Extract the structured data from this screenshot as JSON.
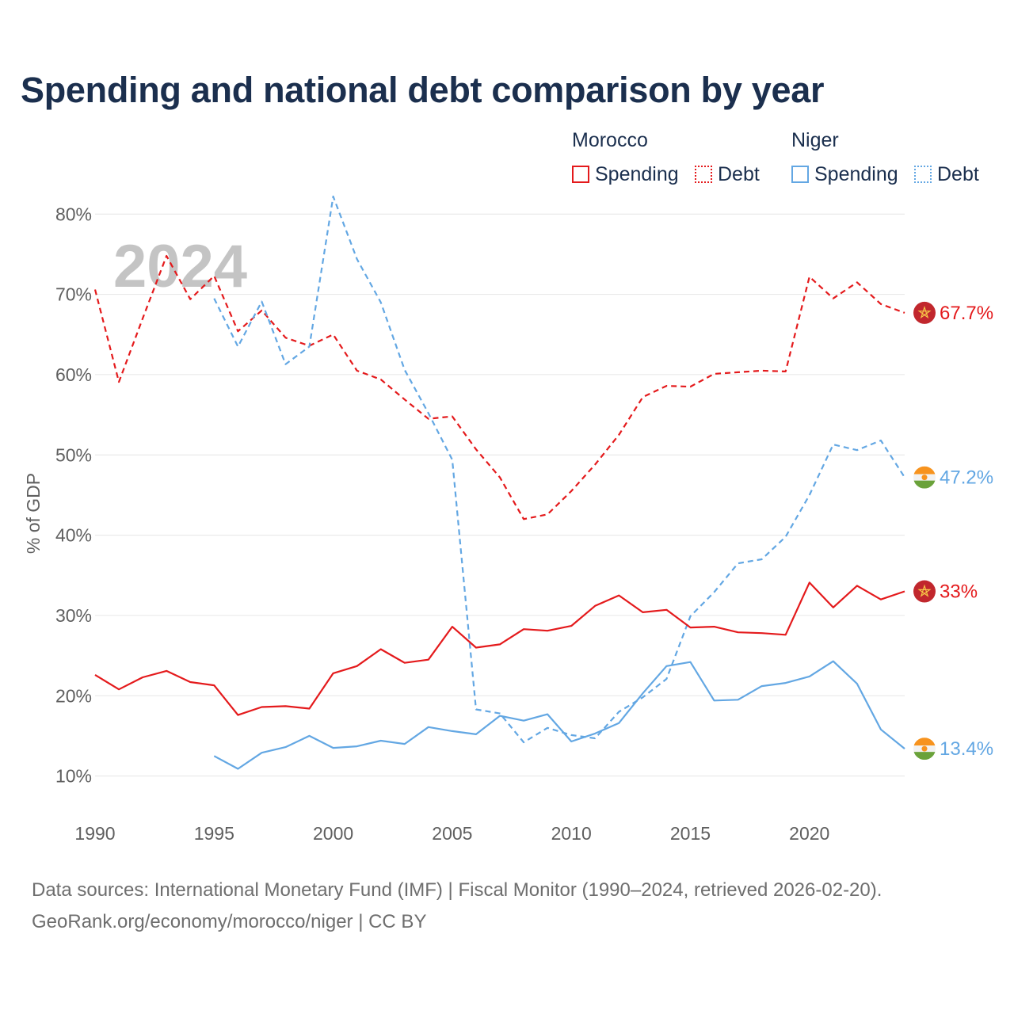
{
  "title": "Spending and national debt comparison by year",
  "legend": {
    "morocco": {
      "name": "Morocco",
      "spending_label": "Spending",
      "debt_label": "Debt"
    },
    "niger": {
      "name": "Niger",
      "spending_label": "Spending",
      "debt_label": "Debt"
    }
  },
  "footer": {
    "line1": "Data sources: International Monetary Fund (IMF) | Fiscal Monitor (1990–2024, retrieved 2026-02-20).",
    "line2": "GeoRank.org/economy/morocco/niger | CC BY"
  },
  "colors": {
    "morocco": "#e41a1c",
    "niger": "#63a7e3",
    "grid": "#e6e6e6"
  },
  "chart_data": {
    "type": "line",
    "title": "Spending and national debt comparison by year",
    "year_label": "2024",
    "ylabel": "% of GDP",
    "xlabel": "",
    "xlim": [
      1990,
      2024
    ],
    "ylim": [
      7,
      82
    ],
    "x_ticks": [
      1990,
      1995,
      2000,
      2005,
      2010,
      2015,
      2020
    ],
    "y_ticks": [
      10,
      20,
      30,
      40,
      50,
      60,
      70,
      80
    ],
    "y_tick_labels": [
      "10%",
      "20%",
      "30%",
      "40%",
      "50%",
      "60%",
      "70%",
      "80%"
    ],
    "grid": true,
    "series": [
      {
        "name": "Morocco Debt",
        "country": "Morocco",
        "kind": "debt",
        "start_year": 1990,
        "values": [
          70.6,
          59.1,
          67.0,
          74.8,
          69.4,
          72.3,
          65.4,
          68.0,
          64.6,
          63.6,
          65.0,
          60.5,
          59.4,
          56.9,
          54.5,
          54.8,
          50.7,
          47.2,
          42.0,
          42.6,
          45.5,
          48.8,
          52.5,
          57.2,
          58.6,
          58.5,
          60.1,
          60.3,
          60.5,
          60.4,
          72.2,
          69.5,
          71.5,
          68.8,
          67.7
        ],
        "end_label": "67.7%"
      },
      {
        "name": "Niger Debt",
        "country": "Niger",
        "kind": "debt",
        "start_year": 1995,
        "values": [
          69.5,
          63.5,
          69.1,
          61.3,
          63.5,
          82.2,
          74.4,
          69.0,
          60.6,
          55.2,
          49.4,
          18.3,
          17.8,
          14.2,
          16.0,
          15.1,
          14.7,
          18.0,
          19.8,
          22.1,
          29.9,
          32.9,
          36.5,
          37.0,
          39.8,
          45.0,
          51.3,
          50.6,
          51.8,
          47.2
        ],
        "end_label": "47.2%"
      },
      {
        "name": "Morocco Spending",
        "country": "Morocco",
        "kind": "spending",
        "start_year": 1990,
        "values": [
          22.6,
          20.8,
          22.3,
          23.1,
          21.7,
          21.3,
          17.6,
          18.6,
          18.7,
          18.4,
          22.8,
          23.7,
          25.8,
          24.1,
          24.5,
          28.6,
          26.0,
          26.4,
          28.3,
          28.1,
          28.7,
          31.2,
          32.5,
          30.4,
          30.7,
          28.5,
          28.6,
          27.9,
          27.8,
          27.6,
          34.1,
          31.0,
          33.7,
          32.0,
          33.0
        ],
        "end_label": "33%"
      },
      {
        "name": "Niger Spending",
        "country": "Niger",
        "kind": "spending",
        "start_year": 1995,
        "values": [
          12.5,
          10.9,
          12.9,
          13.6,
          15.0,
          13.5,
          13.7,
          14.4,
          14.0,
          16.1,
          15.6,
          15.2,
          17.5,
          16.9,
          17.7,
          14.3,
          15.3,
          16.6,
          20.3,
          23.7,
          24.2,
          19.4,
          19.5,
          21.2,
          21.6,
          22.4,
          24.3,
          21.5,
          15.8,
          13.4
        ],
        "end_label": "13.4%"
      }
    ]
  }
}
